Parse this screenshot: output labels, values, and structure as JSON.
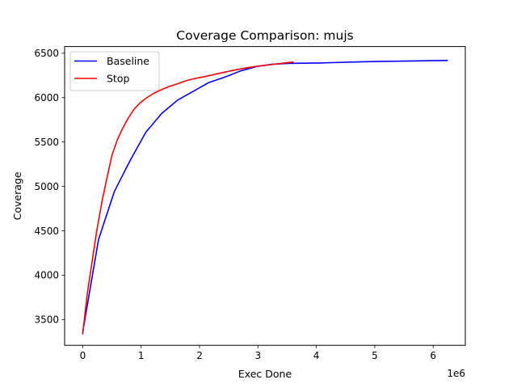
{
  "chart_data": {
    "type": "line",
    "title": "Coverage Comparison: mujs",
    "xlabel": "Exec Done",
    "ylabel": "Coverage",
    "x_offset_label": "1e6",
    "xlim": [
      -0.31,
      6.55
    ],
    "ylim": [
      3210,
      6575
    ],
    "x_ticks": [
      0,
      1,
      2,
      3,
      4,
      5,
      6
    ],
    "y_ticks": [
      3500,
      4000,
      4500,
      5000,
      5500,
      6000,
      6500
    ],
    "grid": false,
    "legend_position": "upper-left",
    "series": [
      {
        "name": "Baseline",
        "color": "#0000ff",
        "points": [
          [
            0.0,
            3360
          ],
          [
            0.27,
            4400
          ],
          [
            0.54,
            4940
          ],
          [
            0.81,
            5290
          ],
          [
            1.08,
            5610
          ],
          [
            1.35,
            5820
          ],
          [
            1.62,
            5970
          ],
          [
            1.89,
            6070
          ],
          [
            2.16,
            6170
          ],
          [
            2.43,
            6230
          ],
          [
            2.7,
            6300
          ],
          [
            2.97,
            6350
          ],
          [
            3.24,
            6375
          ],
          [
            3.51,
            6385
          ],
          [
            3.78,
            6388
          ],
          [
            4.05,
            6390
          ],
          [
            4.32,
            6395
          ],
          [
            4.59,
            6400
          ],
          [
            4.86,
            6405
          ],
          [
            5.13,
            6408
          ],
          [
            5.4,
            6410
          ],
          [
            5.67,
            6413
          ],
          [
            5.94,
            6416
          ],
          [
            6.24,
            6418
          ]
        ]
      },
      {
        "name": "Stop",
        "color": "#ff0000",
        "points": [
          [
            0.0,
            3340
          ],
          [
            0.08,
            3800
          ],
          [
            0.16,
            4150
          ],
          [
            0.24,
            4500
          ],
          [
            0.33,
            4830
          ],
          [
            0.41,
            5080
          ],
          [
            0.5,
            5350
          ],
          [
            0.59,
            5520
          ],
          [
            0.68,
            5650
          ],
          [
            0.78,
            5770
          ],
          [
            0.88,
            5870
          ],
          [
            0.98,
            5940
          ],
          [
            1.1,
            6000
          ],
          [
            1.22,
            6050
          ],
          [
            1.35,
            6090
          ],
          [
            1.48,
            6125
          ],
          [
            1.62,
            6155
          ],
          [
            1.77,
            6190
          ],
          [
            1.92,
            6215
          ],
          [
            2.08,
            6235
          ],
          [
            2.25,
            6260
          ],
          [
            2.42,
            6285
          ],
          [
            2.6,
            6310
          ],
          [
            2.8,
            6335
          ],
          [
            3.0,
            6355
          ],
          [
            3.2,
            6370
          ],
          [
            3.4,
            6385
          ],
          [
            3.6,
            6400
          ]
        ]
      }
    ]
  }
}
